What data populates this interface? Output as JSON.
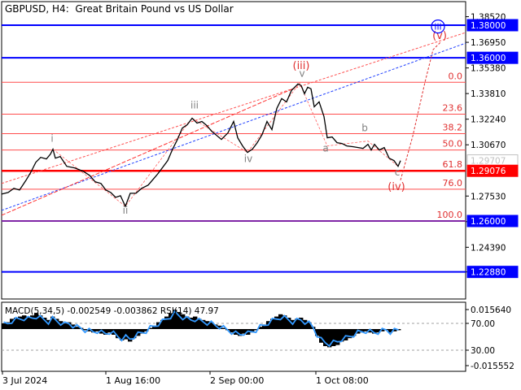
{
  "title": {
    "symbol": "GBPUSD, H4:",
    "description": "Great Britain Pound vs US Dollar"
  },
  "indicator_label": "MACD(5,34,5) -0.002549 -0.003862 RSI(14) 47.97",
  "colors": {
    "price_line": "#000000",
    "hline_blue": "#0000ff",
    "hline_red": "#ff0000",
    "fib_line": "#ff4d4d",
    "wave_red": "#e03030",
    "wave_gray": "#808080",
    "rsi_line": "#3399ff",
    "price_tag_blue": "#0000ff",
    "price_tag_red": "#ff0000"
  },
  "chart_data": {
    "type": "line",
    "price_axis_labels": [
      "1.38520",
      "1.36950",
      "1.35380",
      "1.33810",
      "1.32240",
      "1.30670",
      "1.27530",
      "1.25960",
      "1.24390",
      "1.22880"
    ],
    "price_tags": [
      {
        "label": "1.38000",
        "kind": "blue"
      },
      {
        "label": "1.36000",
        "kind": "blue"
      },
      {
        "label": "1.29707",
        "kind": "current"
      },
      {
        "label": "1.29076",
        "kind": "red"
      },
      {
        "label": "1.26000",
        "kind": "blue"
      },
      {
        "label": "1.22880",
        "kind": "blue"
      }
    ],
    "horizontal_levels": [
      1.38,
      1.36,
      1.26,
      1.2288
    ],
    "fib_levels": [
      {
        "label": "0.0",
        "price": 1.345
      },
      {
        "label": "23.6",
        "price": 1.3255
      },
      {
        "label": "38.2",
        "price": 1.3135
      },
      {
        "label": "50.0",
        "price": 1.3035
      },
      {
        "label": "61.8",
        "price": 1.29076
      },
      {
        "label": "76.0",
        "price": 1.2795
      },
      {
        "label": "100.0",
        "price": 1.26
      }
    ],
    "time_axis_labels": [
      "3 Jul 2024",
      "1 Aug 16:00",
      "2 Sep 00:00",
      "1 Oct 08:00"
    ],
    "wave_labels": [
      {
        "text": "i",
        "color": "gray"
      },
      {
        "text": "ii",
        "color": "gray"
      },
      {
        "text": "iii",
        "color": "gray"
      },
      {
        "text": "iv",
        "color": "gray"
      },
      {
        "text": "v",
        "color": "gray"
      },
      {
        "text": "a",
        "color": "gray"
      },
      {
        "text": "b",
        "color": "gray"
      },
      {
        "text": "c",
        "color": "gray"
      },
      {
        "text": "(iii)",
        "color": "red"
      },
      {
        "text": "(iv)",
        "color": "red"
      },
      {
        "text": "(v)",
        "color": "red"
      },
      {
        "text": "iii",
        "color": "blue"
      }
    ],
    "indicator_axis_labels": [
      "0.015640",
      "70.00",
      "30.00",
      "-0.015552"
    ],
    "price_path": [
      [
        0,
        1.2765
      ],
      [
        8,
        1.2775
      ],
      [
        15,
        1.28
      ],
      [
        22,
        1.279
      ],
      [
        30,
        1.285
      ],
      [
        36,
        1.29
      ],
      [
        42,
        1.296
      ],
      [
        48,
        1.299
      ],
      [
        55,
        1.298
      ],
      [
        60,
        1.301
      ],
      [
        63,
        1.304
      ],
      [
        66,
        1.2985
      ],
      [
        72,
        1.2995
      ],
      [
        80,
        1.2935
      ],
      [
        90,
        1.2925
      ],
      [
        100,
        1.2905
      ],
      [
        108,
        1.288
      ],
      [
        115,
        1.284
      ],
      [
        122,
        1.283
      ],
      [
        128,
        1.279
      ],
      [
        134,
        1.2775
      ],
      [
        140,
        1.2745
      ],
      [
        146,
        1.2755
      ],
      [
        152,
        1.269
      ],
      [
        158,
        1.277
      ],
      [
        165,
        1.277
      ],
      [
        172,
        1.28
      ],
      [
        180,
        1.282
      ],
      [
        186,
        1.2855
      ],
      [
        192,
        1.289
      ],
      [
        198,
        1.293
      ],
      [
        204,
        1.297
      ],
      [
        210,
        1.304
      ],
      [
        216,
        1.31
      ],
      [
        222,
        1.317
      ],
      [
        228,
        1.319
      ],
      [
        234,
        1.323
      ],
      [
        240,
        1.32
      ],
      [
        246,
        1.321
      ],
      [
        252,
        1.3185
      ],
      [
        258,
        1.315
      ],
      [
        264,
        1.3125
      ],
      [
        270,
        1.31
      ],
      [
        278,
        1.314
      ],
      [
        285,
        1.321
      ],
      [
        290,
        1.311
      ],
      [
        296,
        1.306
      ],
      [
        302,
        1.302
      ],
      [
        308,
        1.304
      ],
      [
        314,
        1.308
      ],
      [
        320,
        1.313
      ],
      [
        326,
        1.321
      ],
      [
        332,
        1.316
      ],
      [
        338,
        1.329
      ],
      [
        344,
        1.335
      ],
      [
        350,
        1.333
      ],
      [
        356,
        1.34
      ],
      [
        360,
        1.342
      ],
      [
        364,
        1.344
      ],
      [
        368,
        1.343
      ],
      [
        372,
        1.338
      ],
      [
        376,
        1.342
      ],
      [
        380,
        1.341
      ],
      [
        384,
        1.33
      ],
      [
        390,
        1.333
      ],
      [
        396,
        1.324
      ],
      [
        400,
        1.311
      ],
      [
        406,
        1.3115
      ],
      [
        412,
        1.308
      ],
      [
        418,
        1.3075
      ],
      [
        424,
        1.306
      ],
      [
        432,
        1.3055
      ],
      [
        438,
        1.305
      ],
      [
        444,
        1.3045
      ],
      [
        450,
        1.307
      ],
      [
        454,
        1.3035
      ],
      [
        458,
        1.307
      ],
      [
        464,
        1.3035
      ],
      [
        470,
        1.305
      ],
      [
        476,
        1.2985
      ],
      [
        482,
        1.297
      ],
      [
        487,
        1.2935
      ],
      [
        490,
        1.297
      ]
    ],
    "forecast_path": [
      [
        490,
        1.285
      ],
      [
        505,
        1.312
      ],
      [
        520,
        1.345
      ],
      [
        530,
        1.365
      ],
      [
        540,
        1.37
      ]
    ],
    "macd_histogram_levels": [
      0.25,
      0.3,
      0.45,
      0.5,
      0.55,
      0.6,
      0.55,
      0.6,
      0.7,
      0.6,
      0.5,
      0.4,
      0.55,
      0.45,
      0.35,
      0.25,
      0.3,
      0.2,
      0.1,
      0.05,
      -0.05,
      -0.1,
      -0.15,
      -0.1,
      -0.2,
      -0.25,
      -0.15,
      -0.25,
      -0.4,
      -0.5,
      -0.45,
      -0.55,
      -0.4,
      -0.3,
      -0.2,
      -0.1,
      0.05,
      0.15,
      0.3,
      0.4,
      0.55,
      0.7,
      0.85,
      0.75,
      0.65,
      0.55,
      0.5,
      0.55,
      0.45,
      0.4,
      0.35,
      0.3,
      0.2,
      0.15,
      0.05,
      -0.05,
      -0.15,
      -0.25,
      -0.3,
      -0.2,
      -0.25,
      -0.15,
      -0.05,
      0.1,
      0.2,
      0.35,
      0.45,
      0.55,
      0.65,
      0.6,
      0.5,
      0.4,
      0.45,
      0.5,
      0.4,
      0.3,
      0.1,
      -0.3,
      -0.6,
      -0.75,
      -0.8,
      -0.75,
      -0.7,
      -0.55,
      -0.5,
      -0.4,
      -0.3,
      -0.2,
      -0.15,
      -0.1,
      -0.15,
      -0.2,
      -0.15,
      -0.1,
      -0.05,
      -0.15,
      -0.1,
      -0.05
    ]
  }
}
